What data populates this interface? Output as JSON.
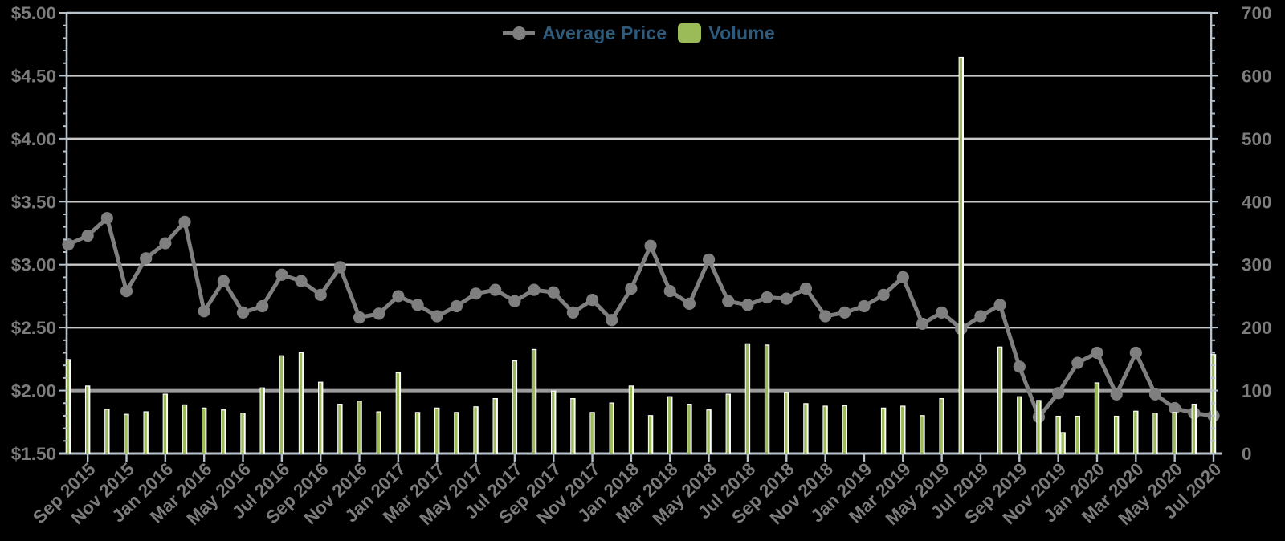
{
  "legend": {
    "price_label": "Average Price",
    "volume_label": "Volume"
  },
  "chart_data": {
    "type": "line+bar",
    "title": "",
    "xlabel": "",
    "ylabel_left": "",
    "ylabel_right": "",
    "legend_position": "top-center",
    "grid": true,
    "months": [
      "Aug 2015",
      "Sep 2015",
      "Oct 2015",
      "Nov 2015",
      "Dec 2015",
      "Jan 2016",
      "Feb 2016",
      "Mar 2016",
      "Apr 2016",
      "May 2016",
      "Jun 2016",
      "Jul 2016",
      "Aug 2016",
      "Sep 2016",
      "Oct 2016",
      "Nov 2016",
      "Dec 2016",
      "Jan 2017",
      "Feb 2017",
      "Mar 2017",
      "Apr 2017",
      "May 2017",
      "Jun 2017",
      "Jul 2017",
      "Aug 2017",
      "Sep 2017",
      "Oct 2017",
      "Nov 2017",
      "Dec 2017",
      "Jan 2018",
      "Feb 2018",
      "Mar 2018",
      "Apr 2018",
      "May 2018",
      "Jun 2018",
      "Jul 2018",
      "Aug 2018",
      "Sep 2018",
      "Oct 2018",
      "Nov 2018",
      "Dec 2018",
      "Jan 2019",
      "Feb 2019",
      "Mar 2019",
      "Apr 2019",
      "May 2019",
      "Jun 2019",
      "Jul 2019",
      "Aug 2019",
      "Sep 2019",
      "Oct 2019",
      "Nov 2019",
      "Dec 2019",
      "Jan 2020",
      "Feb 2020",
      "Mar 2020",
      "Apr 2020",
      "May 2020",
      "Jun 2020",
      "Jul 2020"
    ],
    "series": [
      {
        "name": "Average Price",
        "type": "line",
        "axis": "left",
        "color": "#7f7f7f",
        "values": [
          3.16,
          3.23,
          3.37,
          2.79,
          3.05,
          3.17,
          3.34,
          2.63,
          2.87,
          2.62,
          2.67,
          2.92,
          2.87,
          2.76,
          2.98,
          2.58,
          2.61,
          2.75,
          2.68,
          2.59,
          2.67,
          2.77,
          2.8,
          2.71,
          2.8,
          2.78,
          2.62,
          2.72,
          2.56,
          2.81,
          3.15,
          2.79,
          2.69,
          3.04,
          2.71,
          2.68,
          2.74,
          2.73,
          2.81,
          2.59,
          2.62,
          2.67,
          2.76,
          2.9,
          2.53,
          2.62,
          2.49,
          2.59,
          2.68,
          2.19,
          1.79,
          1.98,
          2.22,
          2.3,
          1.97,
          2.3,
          1.97,
          1.86,
          1.82,
          1.8
        ]
      },
      {
        "name": "Volume",
        "type": "bar",
        "axis": "right",
        "color": "#9bbb59",
        "values": [
          150,
          108,
          71,
          63,
          67,
          95,
          78,
          73,
          70,
          65,
          105,
          156,
          161,
          114,
          79,
          84,
          67,
          129,
          66,
          73,
          66,
          75,
          88,
          148,
          166,
          100,
          88,
          66,
          81,
          108,
          61,
          91,
          79,
          70,
          95,
          175,
          173,
          98,
          80,
          76,
          77,
          0,
          73,
          76,
          61,
          88,
          630,
          0,
          170,
          91,
          85,
          60,
          60,
          113,
          60,
          68,
          65,
          66,
          79,
          158
        ]
      }
    ],
    "extra_bars": [
      {
        "after_month": "Nov 2019",
        "after_index": 51,
        "volume": 34
      }
    ],
    "price_axis": {
      "min": 1.5,
      "max": 5.0,
      "step": 0.5,
      "minor_step": 0.1,
      "tick_labels": [
        "$5.00",
        "$4.50",
        "$4.00",
        "$3.50",
        "$3.00",
        "$2.50",
        "$2.00",
        "$1.50"
      ]
    },
    "volume_axis": {
      "min": 0,
      "max": 700,
      "step": 100,
      "minor_step": 20,
      "tick_labels": [
        "700",
        "600",
        "500",
        "400",
        "300",
        "200",
        "100",
        "0"
      ]
    },
    "x_tick_labels": [
      "Sep 2015",
      "Nov 2015",
      "Jan 2016",
      "Mar 2016",
      "May 2016",
      "Jul 2016",
      "Sep 2016",
      "Nov 2016",
      "Jan 2017",
      "Mar 2017",
      "May 2017",
      "Jul 2017",
      "Sep 2017",
      "Nov 2017",
      "Jan 2018",
      "Mar 2018",
      "May 2018",
      "Jul 2018",
      "Sep 2018",
      "Nov 2018",
      "Jan 2019",
      "Mar 2019",
      "May 2019",
      "Jul 2019",
      "Sep 2019",
      "Nov 2019",
      "Jan 2020",
      "Mar 2020",
      "May 2020",
      "Jul 2020"
    ],
    "x_first_label_index": 1,
    "x_tick_every": 2,
    "colors": {
      "background": "#000000",
      "frame_axis": "#b7c3cd",
      "grid": "#c9c9c9",
      "grid_strong": "#9c9c9c",
      "grid_strong_at_price": 2.0,
      "line": "#7f7f7f",
      "bar_fill": "#9bbb59",
      "bar_edge": "#ffffff",
      "axis_text": "#7c7c7c",
      "legend_text": "#2e5a7c"
    }
  }
}
